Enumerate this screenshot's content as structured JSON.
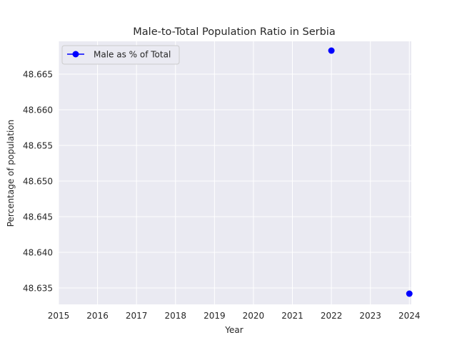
{
  "chart_data": {
    "type": "line",
    "title": "Male-to-Total Population Ratio in Serbia",
    "xlabel": "Year",
    "ylabel": "Percentage of population",
    "xlim": [
      2015,
      2024.05
    ],
    "ylim": [
      48.6327,
      48.6696
    ],
    "x_ticks": [
      2015,
      2016,
      2017,
      2018,
      2019,
      2020,
      2021,
      2022,
      2023,
      2024
    ],
    "y_ticks": [
      48.635,
      48.64,
      48.645,
      48.65,
      48.655,
      48.66,
      48.665
    ],
    "y_tick_labels": [
      "48.635",
      "48.640",
      "48.645",
      "48.650",
      "48.655",
      "48.660",
      "48.665"
    ],
    "grid": true,
    "legend_position": "top-left",
    "series": [
      {
        "name": "Male as % of Total",
        "color": "#0000ff",
        "marker": "circle",
        "x": [
          2022,
          2024
        ],
        "y": [
          48.6683,
          48.6342
        ]
      }
    ]
  }
}
